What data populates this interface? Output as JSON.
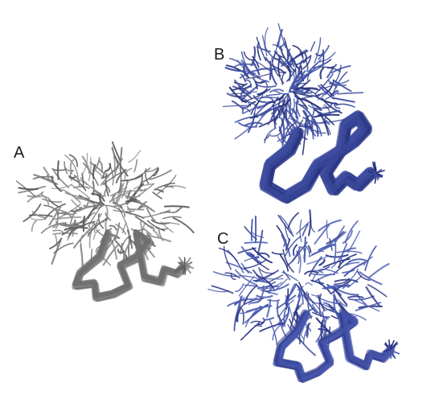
{
  "panels": [
    {
      "label": "A",
      "style": "gray",
      "color": "#8a8a8a",
      "dark": "#5e5e5e"
    },
    {
      "label": "B",
      "style": "blue-dense",
      "color": "#3f4fa3",
      "dark": "#25307a"
    },
    {
      "label": "C",
      "style": "blue",
      "color": "#4a5bb0",
      "dark": "#2a3585"
    }
  ]
}
